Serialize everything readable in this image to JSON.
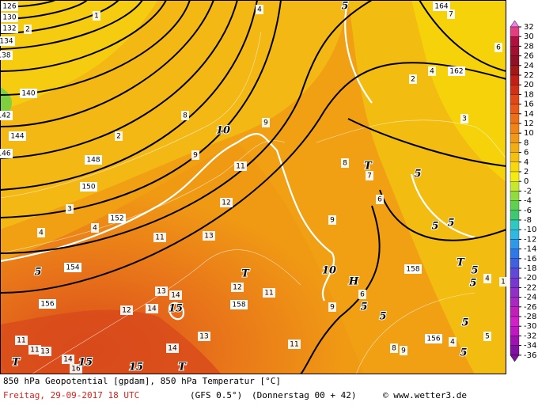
{
  "footer": {
    "title": "850 hPa Geopotential [gpdam], 850 hPa Temperatur [°C]",
    "date": "Freitag, 29-09-2017  18 UTC",
    "model": "(GFS 0.5°)",
    "run": "(Donnerstag 00 + 42)",
    "site": "© www.wetter3.de"
  },
  "legend": {
    "values": [
      32,
      30,
      28,
      26,
      24,
      22,
      20,
      18,
      16,
      14,
      12,
      10,
      8,
      6,
      4,
      2,
      0,
      -2,
      -4,
      -6,
      -8,
      -10,
      -12,
      -14,
      -16,
      -18,
      -20,
      -22,
      -24,
      -26,
      -28,
      -30,
      -32,
      -34,
      -36
    ]
  },
  "map": {
    "labels": [
      "126",
      "130",
      "132",
      "134",
      "138",
      "140",
      "142",
      "144",
      "146",
      "148",
      "150",
      "152",
      "154",
      "156",
      "158",
      "158",
      "162",
      "164",
      "1",
      "2",
      "2",
      "3",
      "4",
      "4",
      "4",
      "8",
      "9",
      "9",
      "11",
      "12",
      "11",
      "13",
      "13",
      "14",
      "12",
      "14",
      "14",
      "13",
      "12",
      "11",
      "11",
      "8",
      "7",
      "9",
      "4",
      "2",
      "3",
      "7",
      "6",
      "6",
      "6",
      "9",
      "8",
      "9",
      "156",
      "4",
      "1",
      "11",
      "13",
      "14",
      "16",
      "11",
      "4",
      "5"
    ],
    "contour_labels": [
      "10",
      "10",
      "15",
      "15",
      "15",
      "5",
      "5",
      "5",
      "5",
      "5",
      "5",
      "5",
      "5",
      "5",
      "5",
      "5"
    ],
    "markers": [
      "T",
      "T",
      "T",
      "T",
      "T",
      "H"
    ]
  }
}
